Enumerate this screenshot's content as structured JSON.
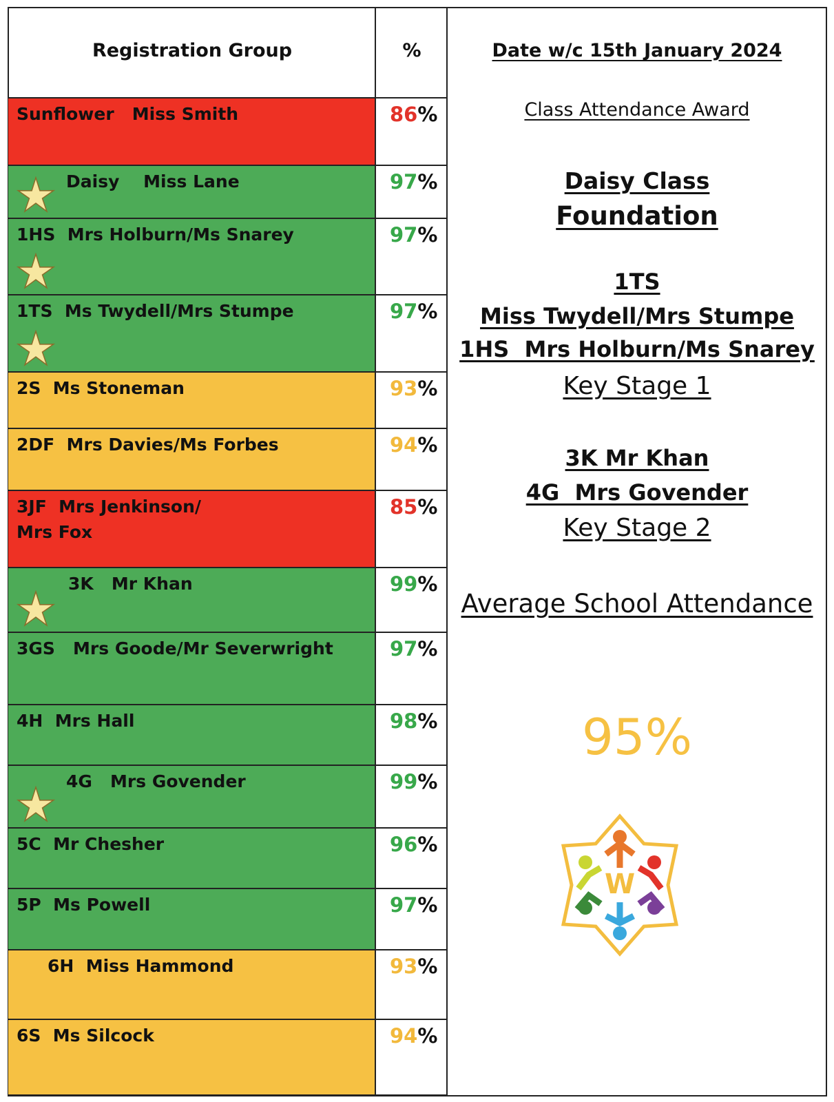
{
  "table": {
    "header": {
      "group": "Registration Group",
      "percent": "%"
    },
    "palette": {
      "red": {
        "fill": "#ee3124",
        "text": "#e2332a"
      },
      "green": {
        "fill": "#4dab57",
        "text": "#38a84a"
      },
      "amber": {
        "fill": "#f6c143",
        "text": "#f2b93c"
      }
    },
    "rows": [
      {
        "group": "Sunflower   Miss Smith",
        "value": 86,
        "sign": "%",
        "status": "red",
        "award": false
      },
      {
        "group": "Daisy    Miss Lane",
        "value": 97,
        "sign": "%",
        "status": "green",
        "award": true
      },
      {
        "group": "1HS  Mrs Holburn/Ms Snarey",
        "value": 97,
        "sign": "%",
        "status": "green",
        "award": true
      },
      {
        "group": "1TS  Ms Twydell/Mrs Stumpe",
        "value": 97,
        "sign": "%",
        "status": "green",
        "award": true
      },
      {
        "group": "2S  Ms Stoneman",
        "value": 93,
        "sign": "%",
        "status": "amber",
        "award": false
      },
      {
        "group": "2DF  Mrs Davies/Ms Forbes",
        "value": 94,
        "sign": "%",
        "status": "amber",
        "award": false
      },
      {
        "group": "3JF  Mrs Jenkinson/\nMrs Fox",
        "value": 85,
        "sign": "%",
        "status": "red",
        "award": false
      },
      {
        "group": "3K   Mr Khan",
        "value": 99,
        "sign": "%",
        "status": "green",
        "award": true
      },
      {
        "group": "3GS   Mrs Goode/Mr Severwright",
        "value": 97,
        "sign": "%",
        "status": "green",
        "award": false
      },
      {
        "group": "4H  Mrs Hall",
        "value": 98,
        "sign": "%",
        "status": "green",
        "award": false
      },
      {
        "group": "4G   Mrs Govender",
        "value": 99,
        "sign": "%",
        "status": "green",
        "award": true
      },
      {
        "group": "5C  Mr Chesher",
        "value": 96,
        "sign": "%",
        "status": "green",
        "award": false
      },
      {
        "group": "5P  Ms Powell",
        "value": 97,
        "sign": "%",
        "status": "green",
        "award": false
      },
      {
        "group": "6H  Miss Hammond",
        "value": 93,
        "sign": "%",
        "status": "amber",
        "award": false
      },
      {
        "group": "6S  Ms Silcock",
        "value": 94,
        "sign": "%",
        "status": "amber",
        "award": false
      }
    ]
  },
  "panel": {
    "date": "Date w/c 15th January 2024",
    "award_title": "Class Attendance Award",
    "foundation_class": "Daisy Class",
    "foundation_label": "Foundation",
    "ks1_lines": [
      "1TS",
      "Miss Twydell/Mrs Stumpe",
      "1HS  Mrs Holburn/Ms Snarey"
    ],
    "ks1_label": "Key Stage 1",
    "ks2_lines": [
      "3K Mr Khan",
      "4G  Mrs Govender"
    ],
    "ks2_label": "Key Stage 2",
    "average_label": "Average School Attendance",
    "average_value": "95%"
  }
}
